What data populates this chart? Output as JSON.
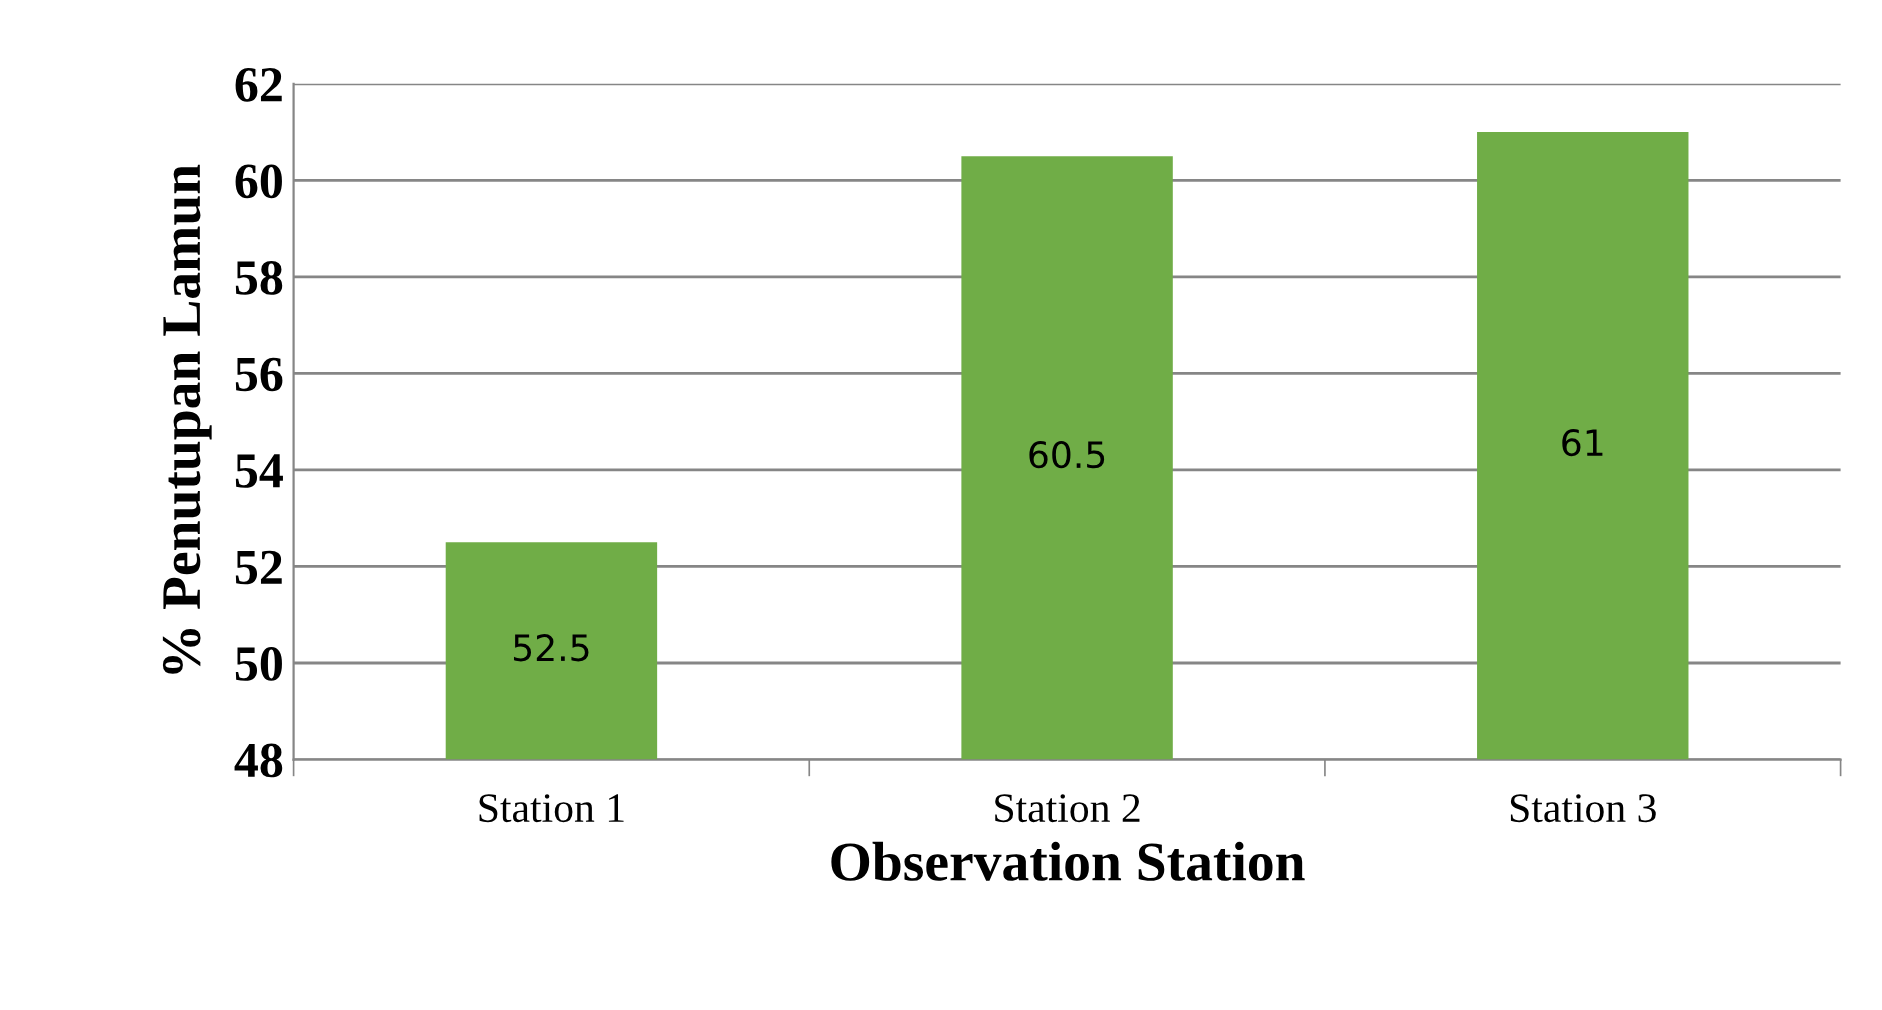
{
  "chart_data": {
    "type": "bar",
    "xlabel": "Observation Station",
    "ylabel": "% Penutupan Lamun",
    "categories": [
      "Station 1",
      "Station 2",
      "Station 3"
    ],
    "values": [
      52.5,
      60.5,
      61
    ],
    "color": "#70ad47",
    "ylim": [
      48,
      62
    ],
    "yticks": [
      48,
      50,
      52,
      54,
      56,
      58,
      60,
      62
    ],
    "grid": "y",
    "data_labels": true
  }
}
